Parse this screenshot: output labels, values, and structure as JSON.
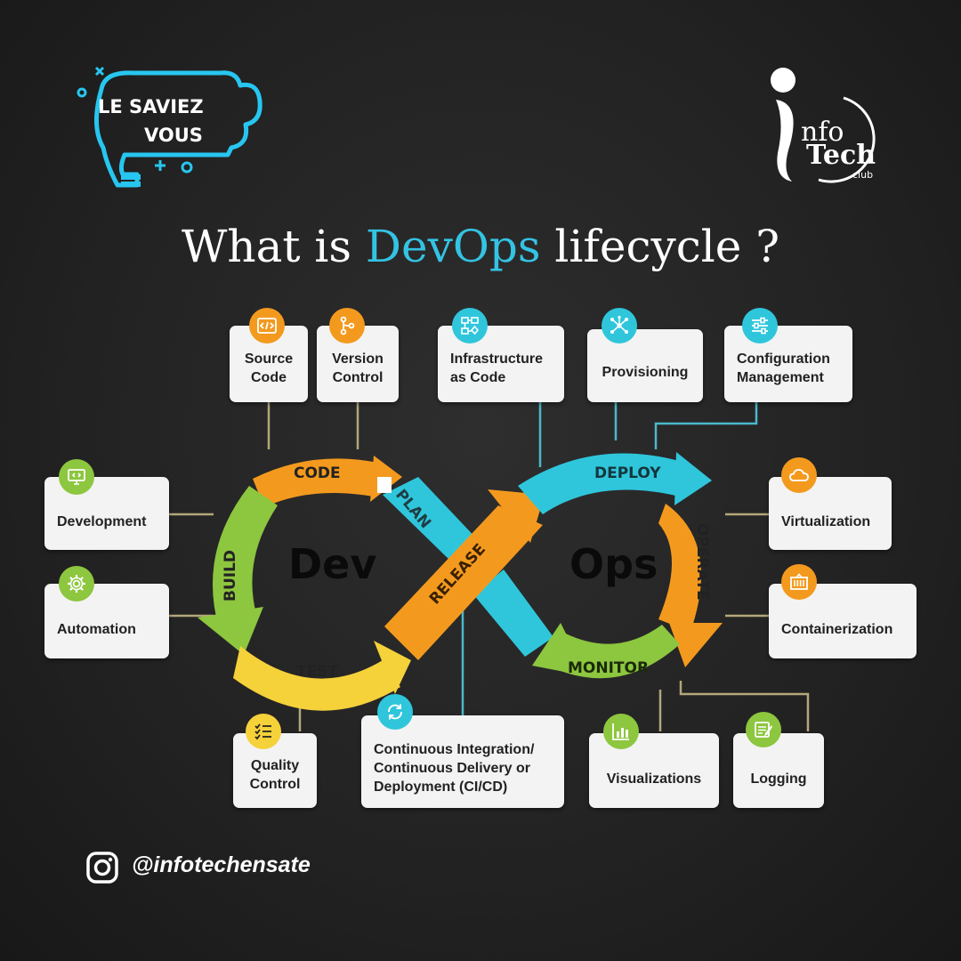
{
  "badge": {
    "line1": "LE SAVIEZ",
    "line2": "VOUS"
  },
  "logo": {
    "name_i": "I",
    "name_nfo": "nfo",
    "name_tech": "Tech",
    "name_club": "club"
  },
  "title": {
    "part1": "What is ",
    "highlight": "DevOps",
    "part2": " lifecycle ?"
  },
  "colors": {
    "accent": "#34c3e3",
    "orange": "#f39a1e",
    "teal": "#2fc6dc",
    "yellow": "#f5d13a",
    "green": "#8dc63f"
  },
  "loop": {
    "left_label": "Dev",
    "right_label": "Ops",
    "stages": {
      "code": "CODE",
      "plan": "PLAN",
      "build": "BUILD",
      "test": "TEST",
      "release": "RELEASE",
      "deploy": "DEPLOY",
      "operate": "OPERATE",
      "monitor": "MONITOR"
    }
  },
  "cards": {
    "source_code": {
      "l1": "Source",
      "l2": "Code",
      "icon": "code-icon"
    },
    "version_control": {
      "l1": "Version",
      "l2": "Control",
      "icon": "branch-icon"
    },
    "infrastructure": {
      "l1": "Infrastructure",
      "l2": "as Code",
      "icon": "flowchart-icon"
    },
    "provisioning": {
      "l1": "Provisioning",
      "icon": "network-icon"
    },
    "configuration": {
      "l1": "Configuration",
      "l2": "Management",
      "icon": "sliders-icon"
    },
    "development": {
      "l1": "Development",
      "icon": "monitor-code-icon"
    },
    "automation": {
      "l1": "Automation",
      "icon": "gear-icon"
    },
    "virtualization": {
      "l1": "Virtualization",
      "icon": "cloud-icon"
    },
    "containerization": {
      "l1": "Containerization",
      "icon": "container-icon"
    },
    "quality_control": {
      "l1": "Quality",
      "l2": "Control",
      "icon": "checklist-icon"
    },
    "cicd": {
      "l1": "Continuous Integration/",
      "l2": "Continuous Delivery or",
      "l3": "Deployment (CI/CD)",
      "icon": "refresh-icon"
    },
    "visualizations": {
      "l1": "Visualizations",
      "icon": "bar-chart-icon"
    },
    "logging": {
      "l1": "Logging",
      "icon": "notepad-icon"
    }
  },
  "social": {
    "handle": "@infotechensate",
    "icon": "instagram-icon"
  }
}
